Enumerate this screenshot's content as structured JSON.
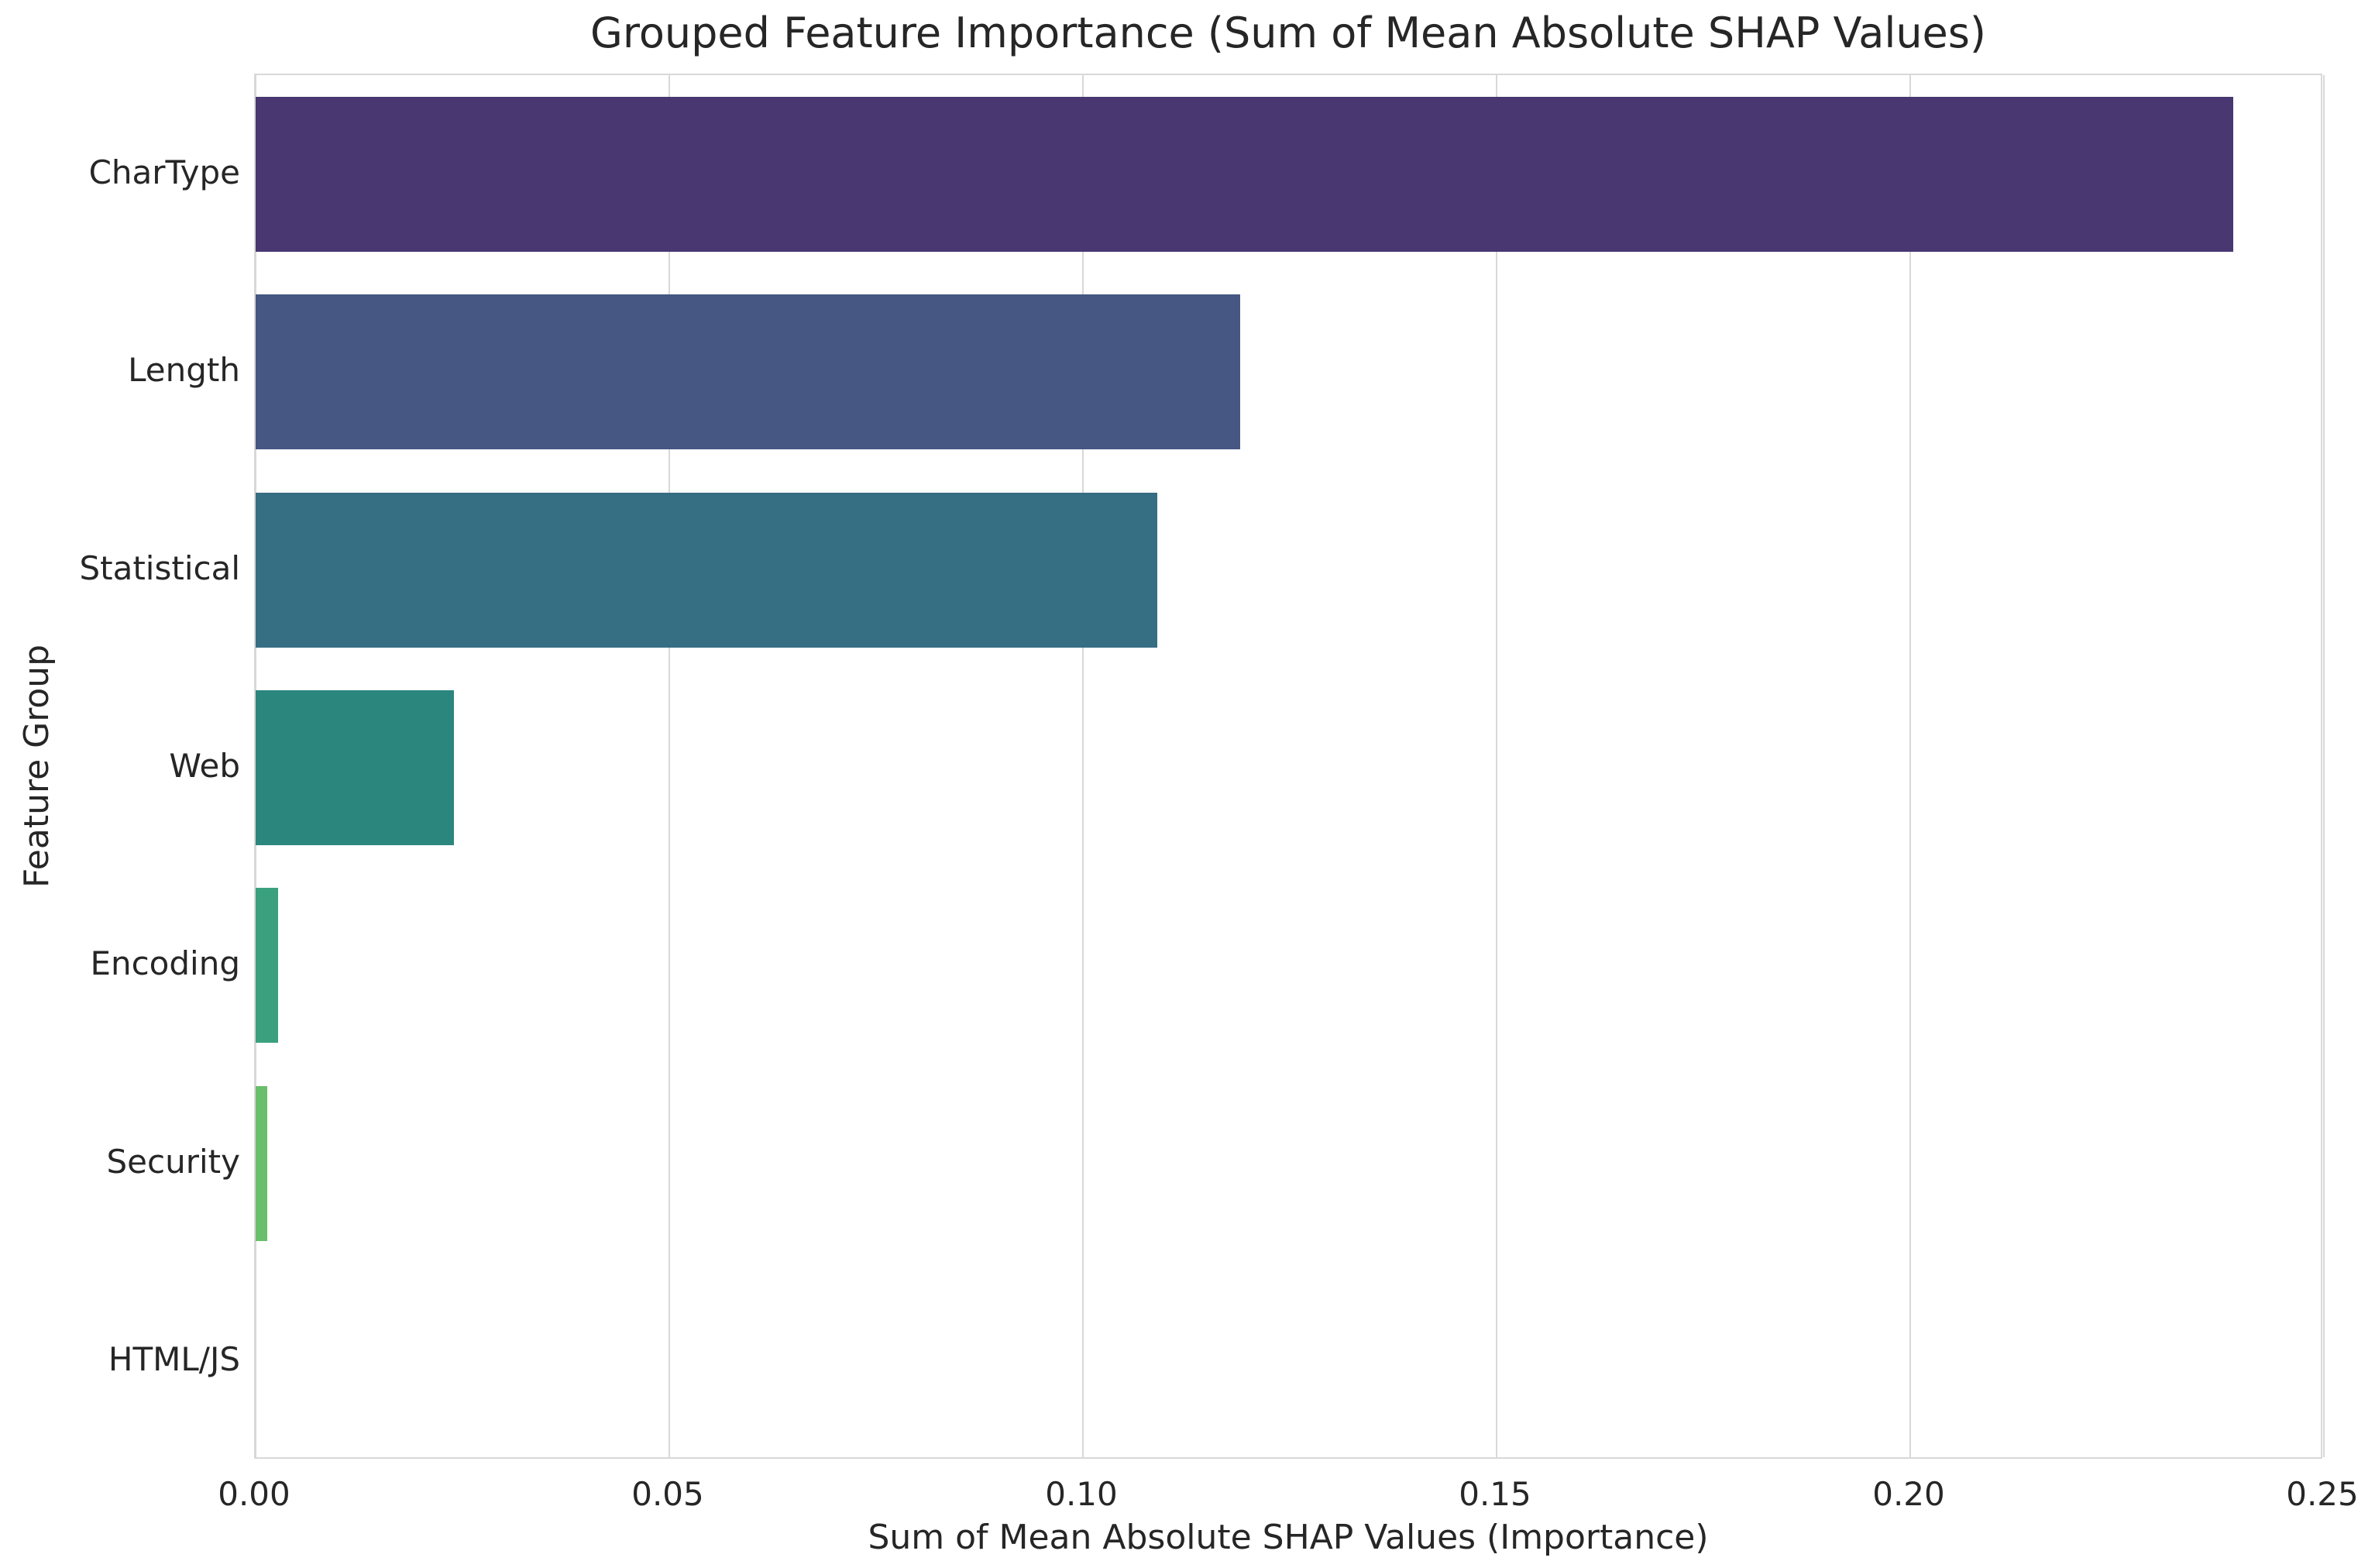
{
  "chart_data": {
    "type": "bar",
    "orientation": "horizontal",
    "title": "Grouped Feature Importance (Sum of Mean Absolute SHAP Values)",
    "xlabel": "Sum of Mean Absolute SHAP Values (Importance)",
    "ylabel": "Feature Group",
    "categories": [
      "CharType",
      "Length",
      "Statistical",
      "Web",
      "Encoding",
      "Security",
      "HTML/JS"
    ],
    "values": [
      0.239,
      0.119,
      0.109,
      0.024,
      0.0027,
      0.0014,
      0.0
    ],
    "bar_colors": [
      "#483771",
      "#455782",
      "#366e84",
      "#2b867e",
      "#3aa07d",
      "#68be6a",
      "#8ccf66"
    ],
    "x_ticks": [
      "0.00",
      "0.05",
      "0.10",
      "0.15",
      "0.20",
      "0.25"
    ],
    "x_tick_values": [
      0.0,
      0.05,
      0.1,
      0.15,
      0.2,
      0.25
    ],
    "xlim": [
      0,
      0.25
    ],
    "grid": "vertical",
    "legend": "none",
    "background_color": "#ffffff",
    "grid_color": "#d8d8d8",
    "text_color": "#262626"
  }
}
